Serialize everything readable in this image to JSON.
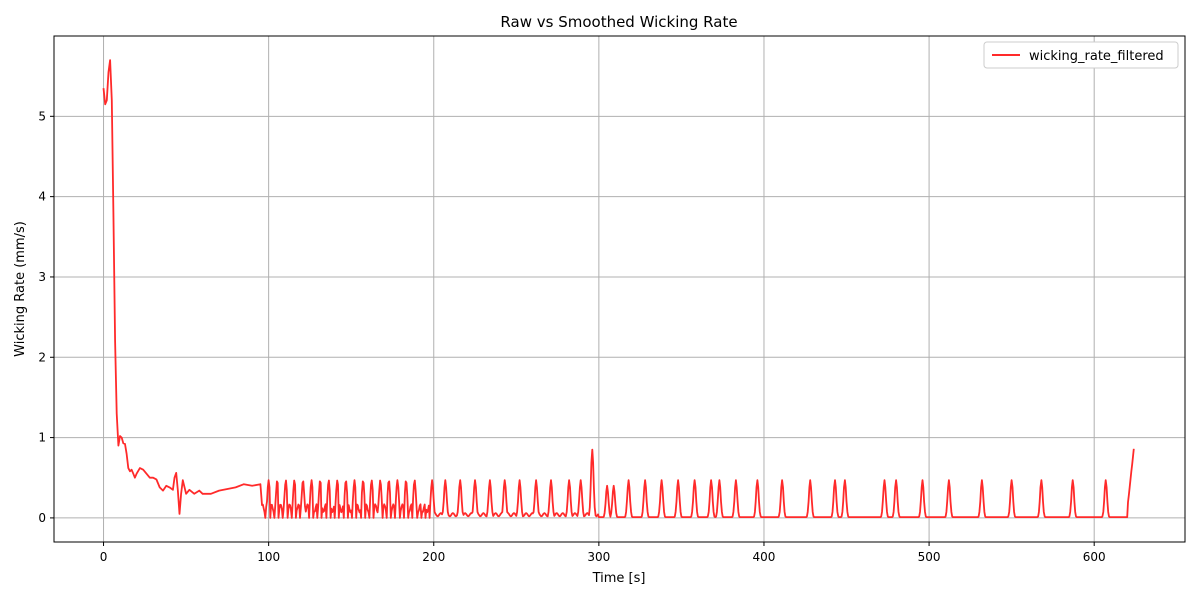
{
  "chart_data": {
    "type": "line",
    "title": "Raw vs Smoothed Wicking Rate",
    "xlabel": "Time [s]",
    "ylabel": "Wicking Rate (mm/s)",
    "xlim": [
      -30,
      655
    ],
    "ylim": [
      -0.3,
      6.0
    ],
    "x_ticks": [
      0,
      100,
      200,
      300,
      400,
      500,
      600
    ],
    "y_ticks": [
      0,
      1,
      2,
      3,
      4,
      5
    ],
    "grid": true,
    "legend_position": "top-right",
    "series": [
      {
        "name": "wicking_rate_filtered",
        "color": "#ff2a2a",
        "x": [
          0,
          1,
          2,
          3,
          4,
          5,
          6,
          7,
          8,
          9,
          10,
          11,
          12,
          13,
          14,
          15,
          16,
          17,
          18,
          19,
          20,
          22,
          24,
          26,
          28,
          30,
          32,
          34,
          36,
          38,
          40,
          42,
          43,
          44,
          45,
          46,
          47,
          48,
          50,
          52,
          55,
          58,
          60,
          65,
          70,
          75,
          80,
          85,
          90,
          95
        ],
        "y": [
          5.35,
          5.15,
          5.2,
          5.55,
          5.7,
          5.2,
          3.8,
          2.2,
          1.3,
          0.9,
          1.02,
          1.0,
          0.93,
          0.92,
          0.8,
          0.62,
          0.58,
          0.6,
          0.55,
          0.5,
          0.55,
          0.62,
          0.6,
          0.55,
          0.5,
          0.5,
          0.48,
          0.38,
          0.34,
          0.4,
          0.38,
          0.35,
          0.5,
          0.56,
          0.35,
          0.05,
          0.3,
          0.47,
          0.3,
          0.35,
          0.3,
          0.34,
          0.3,
          0.3,
          0.34,
          0.36,
          0.38,
          0.42,
          0.4,
          0.42
        ]
      }
    ],
    "annotations": []
  }
}
